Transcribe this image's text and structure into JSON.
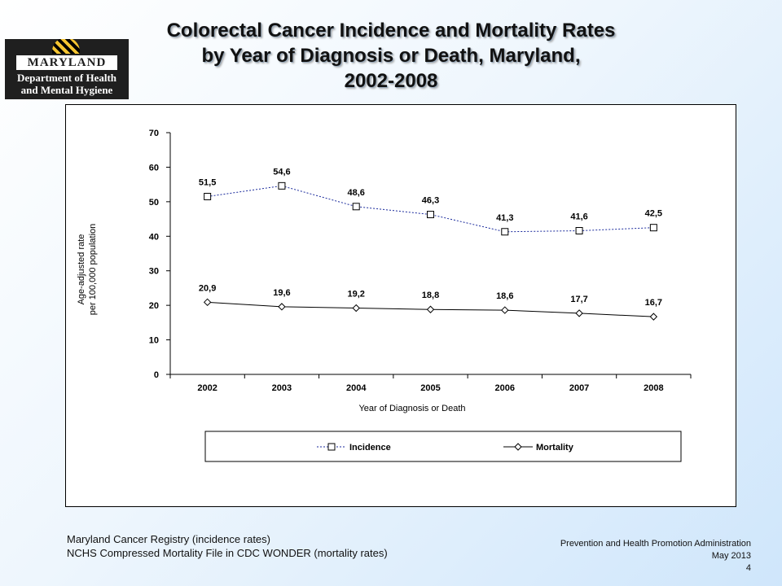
{
  "logo": {
    "state": "MARYLAND",
    "line1": "Department of Health",
    "line2": "and Mental Hygiene"
  },
  "title": {
    "line1": "Colorectal Cancer Incidence and Mortality Rates",
    "line2": "by Year of Diagnosis or Death, Maryland,",
    "line3": "2002-2008"
  },
  "chart_data": {
    "type": "line",
    "categories": [
      "2002",
      "2003",
      "2004",
      "2005",
      "2006",
      "2007",
      "2008"
    ],
    "series": [
      {
        "name": "Incidence",
        "values": [
          51.5,
          54.6,
          48.6,
          46.3,
          41.3,
          41.6,
          42.5
        ],
        "labels": [
          "51,5",
          "54,6",
          "48,6",
          "46,3",
          "41,3",
          "41,6",
          "42,5"
        ],
        "color": "#1a2a9c",
        "line_style": "dashed",
        "marker": "square"
      },
      {
        "name": "Mortality",
        "values": [
          20.9,
          19.6,
          19.2,
          18.8,
          18.6,
          17.7,
          16.7
        ],
        "labels": [
          "20,9",
          "19,6",
          "19,2",
          "18,8",
          "18,6",
          "17,7",
          "16,7"
        ],
        "color": "#000000",
        "line_style": "solid",
        "marker": "diamond"
      }
    ],
    "ylim": [
      0,
      70
    ],
    "yticks": [
      "0",
      "10",
      "20",
      "30",
      "40",
      "50",
      "60",
      "70"
    ],
    "ylabel_line1": "Age-adjusted rate",
    "ylabel_line2": "per 100,000 population",
    "xlabel": "Year of Diagnosis or Death",
    "legend_position": "bottom",
    "grid": false
  },
  "sources": {
    "line1": "Maryland Cancer Registry (incidence rates)",
    "line2": "NCHS Compressed Mortality File in CDC WONDER (mortality rates)"
  },
  "footer": {
    "org": "Prevention and Health Promotion Administration",
    "date": "May 2013",
    "page": "4"
  }
}
